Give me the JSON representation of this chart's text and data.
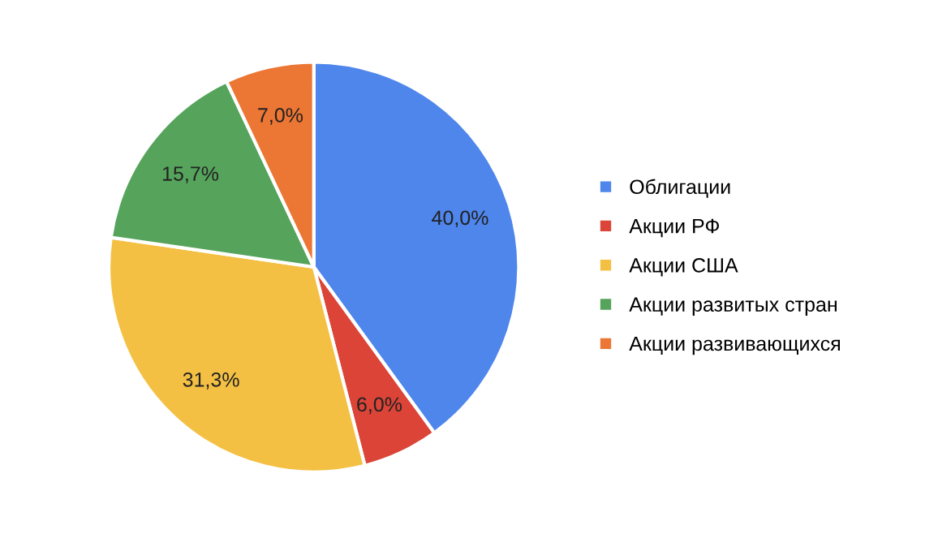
{
  "chart_data": {
    "type": "pie",
    "categories": [
      "Облигации",
      "Акции РФ",
      "Акции США",
      "Акции развитых стран",
      "Акции развивающихся"
    ],
    "values": [
      40.0,
      6.0,
      31.3,
      15.7,
      7.0
    ],
    "colors": [
      "#4f86ec",
      "#db4437",
      "#f4c043",
      "#56a45c",
      "#ec7634"
    ],
    "value_labels": [
      "40,0%",
      "6,0%",
      "31,3%",
      "15,7%",
      "7,0%"
    ],
    "legend": "right"
  }
}
